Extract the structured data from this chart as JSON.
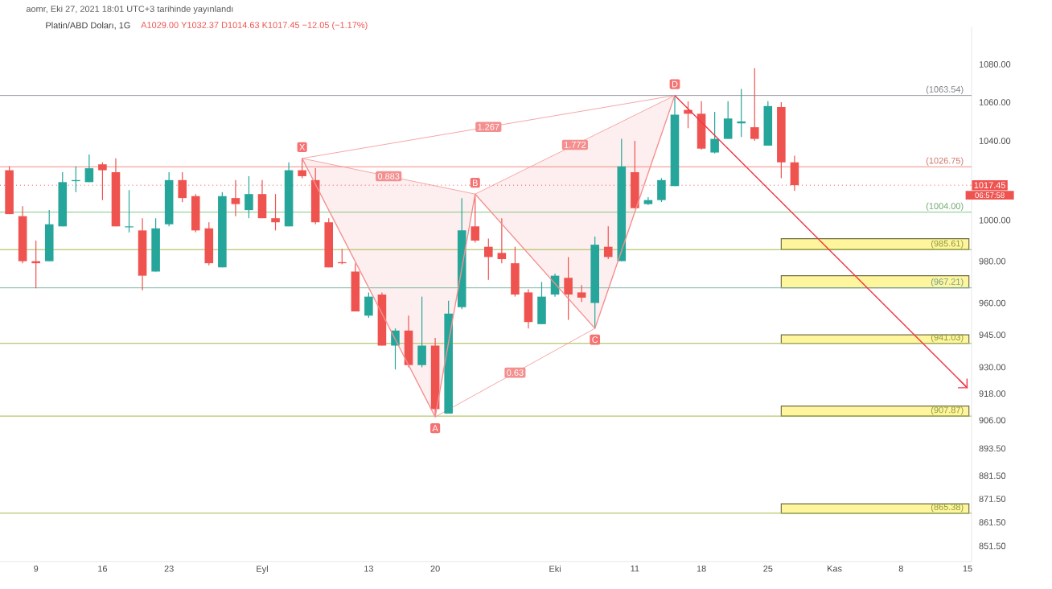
{
  "chart_data": {
    "type": "candlestick",
    "title": "Platin/ABD Doları, 1G",
    "subtitle": "A1029.00 Y1032.37 D1014.63 K1017.45 −12.05 (−1.17%)",
    "annotations": [
      "aomr, Eki 27, 2021 18:01 UTC+3 tarihinde yayınlandı",
      "0.883",
      "1.267",
      "1.772",
      "0.63",
      "06:57:58"
    ],
    "categories": [
      null,
      null,
      "9",
      null,
      null,
      null,
      null,
      "16",
      null,
      null,
      null,
      null,
      "23",
      null,
      null,
      null,
      null,
      null,
      null,
      "Eyl",
      null,
      null,
      null,
      null,
      null,
      null,
      null,
      "13",
      null,
      null,
      null,
      null,
      "20",
      null,
      null,
      null,
      null,
      null,
      null,
      null,
      null,
      "Eki",
      null,
      null,
      null,
      null,
      null,
      "11",
      null,
      null,
      null,
      null,
      "18",
      null,
      null,
      null,
      null,
      "25",
      null,
      null,
      null,
      null,
      "Kas",
      null,
      null,
      null,
      null,
      "8",
      null,
      null,
      null,
      null,
      "15"
    ],
    "ohlc": [
      [
        1025,
        1027,
        1003,
        1003
      ],
      [
        1002,
        1007,
        979,
        980
      ],
      [
        980,
        990,
        967,
        979
      ],
      [
        980,
        1005,
        980,
        998
      ],
      [
        997,
        1024,
        997,
        1019
      ],
      [
        1019.5,
        1027,
        1014,
        1020
      ],
      [
        1019,
        1033,
        1019,
        1026
      ],
      [
        1028,
        1029,
        1010,
        1025
      ],
      [
        1024,
        1031,
        997,
        997
      ],
      [
        996.5,
        1015,
        994,
        997
      ],
      [
        995,
        1001,
        966,
        973
      ],
      [
        975,
        1001,
        975,
        996
      ],
      [
        998,
        1024,
        997,
        1020
      ],
      [
        1020,
        1024,
        1009,
        1011
      ],
      [
        1012,
        1013,
        994,
        995
      ],
      [
        996,
        999,
        978,
        979
      ],
      [
        977,
        1014,
        977,
        1012
      ],
      [
        1011,
        1020,
        1002,
        1008
      ],
      [
        1005,
        1022,
        1001,
        1013
      ],
      [
        1013,
        1020,
        1001,
        1001
      ],
      [
        1001,
        1013,
        995,
        999
      ],
      [
        997,
        1029,
        997,
        1025
      ],
      [
        1025,
        1031,
        1021,
        1022
      ],
      [
        1020,
        1026,
        998,
        999
      ],
      [
        999,
        1001,
        977,
        977
      ],
      [
        979.5,
        986,
        978.5,
        979
      ],
      [
        975,
        979,
        956,
        956
      ],
      [
        954,
        965,
        953,
        963
      ],
      [
        964,
        965,
        940,
        940
      ],
      [
        940,
        948,
        929,
        947
      ],
      [
        947,
        954,
        930,
        931
      ],
      [
        931,
        963,
        930,
        940
      ],
      [
        940,
        943.5,
        907.5,
        911
      ],
      [
        909,
        961,
        909,
        955
      ],
      [
        958,
        1011,
        957,
        995
      ],
      [
        997,
        1013,
        989,
        990
      ],
      [
        987,
        991,
        971,
        982
      ],
      [
        984,
        1001,
        979,
        981
      ],
      [
        979,
        987,
        963,
        964
      ],
      [
        965,
        966.5,
        948,
        951
      ],
      [
        950,
        970,
        950,
        963
      ],
      [
        964,
        974,
        963,
        973
      ],
      [
        972,
        982,
        952,
        964
      ],
      [
        965,
        968.5,
        960.5,
        962.5
      ],
      [
        960,
        992,
        948,
        988
      ],
      [
        987,
        997,
        981,
        982
      ],
      [
        980,
        1041,
        980,
        1027
      ],
      [
        1024,
        1040,
        1006,
        1006
      ],
      [
        1008,
        1011.5,
        1007.5,
        1010
      ],
      [
        1010,
        1021,
        1009,
        1020
      ],
      [
        1017,
        1063.54,
        1017,
        1053.5
      ],
      [
        1056,
        1060.5,
        1046.5,
        1054
      ],
      [
        1054,
        1060.5,
        1035.5,
        1036
      ],
      [
        1034,
        1055,
        1033.5,
        1041
      ],
      [
        1041,
        1060.5,
        1041,
        1051.5
      ],
      [
        1049,
        1067,
        1042,
        1050
      ],
      [
        1047,
        1078,
        1040,
        1041
      ],
      [
        1037.5,
        1060.5,
        1037.5,
        1058
      ],
      [
        1057.5,
        1060,
        1021,
        1029
      ],
      [
        1029,
        1032.37,
        1014.63,
        1017.45
      ],
      null,
      null,
      null,
      null,
      null,
      null,
      null,
      null,
      null,
      null,
      null,
      null,
      null
    ],
    "colors": [
      "#ef5350",
      "#ef5350",
      "#ef5350",
      "#26a69a",
      "#26a69a",
      "#26a69a",
      "#26a69a",
      "#ef5350",
      "#ef5350",
      "#26a69a",
      "#ef5350",
      "#26a69a",
      "#26a69a",
      "#ef5350",
      "#ef5350",
      "#ef5350",
      "#26a69a",
      "#ef5350",
      "#26a69a",
      "#ef5350",
      "#ef5350",
      "#26a69a",
      "#ef5350",
      "#ef5350",
      "#ef5350",
      "#ef5350",
      "#ef5350",
      "#26a69a",
      "#ef5350",
      "#26a69a",
      "#ef5350",
      "#26a69a",
      "#ef5350",
      "#26a69a",
      "#26a69a",
      "#ef5350",
      "#ef5350",
      "#ef5350",
      "#ef5350",
      "#ef5350",
      "#26a69a",
      "#26a69a",
      "#ef5350",
      "#ef5350",
      "#26a69a",
      "#ef5350",
      "#26a69a",
      "#ef5350",
      "#26a69a",
      "#26a69a",
      "#26a69a",
      "#ef5350",
      "#ef5350",
      "#26a69a",
      "#26a69a",
      "#26a69a",
      "#ef5350",
      "#26a69a",
      "#ef5350",
      "#ef5350",
      null,
      null,
      null,
      null,
      null,
      null,
      null,
      null,
      null,
      null,
      null,
      null,
      null
    ],
    "series": [
      {
        "type": "line",
        "color": "#f48f8f",
        "values": [
          null,
          null,
          null,
          null,
          null,
          null,
          null,
          null,
          null,
          null,
          null,
          null,
          null,
          null,
          null,
          null,
          null,
          null,
          null,
          null,
          null,
          null,
          1031,
          null,
          null,
          null,
          null,
          null,
          null,
          null,
          null,
          null,
          907.5,
          null,
          null,
          1013,
          null,
          null,
          null,
          null,
          null,
          null,
          null,
          null,
          948,
          null,
          null,
          null,
          null,
          null,
          1063.54,
          null,
          null,
          null,
          null,
          null,
          null,
          null,
          null,
          null,
          null,
          null,
          null,
          null,
          null,
          null,
          null,
          null,
          null,
          null,
          null,
          null,
          null
        ],
        "value_labels": [
          null,
          null,
          null,
          null,
          null,
          null,
          null,
          null,
          null,
          null,
          null,
          null,
          null,
          null,
          null,
          null,
          null,
          null,
          null,
          null,
          null,
          null,
          "X",
          null,
          null,
          null,
          null,
          null,
          null,
          null,
          null,
          null,
          "A",
          null,
          null,
          "B",
          null,
          null,
          null,
          null,
          null,
          null,
          null,
          null,
          "C",
          null,
          null,
          null,
          null,
          null,
          "D",
          null,
          null,
          null,
          null,
          null,
          null,
          null,
          null,
          null,
          null,
          null,
          null,
          null,
          null,
          null,
          null,
          null,
          null,
          null,
          null,
          null,
          null
        ]
      },
      {
        "type": "line",
        "color": "#f23645",
        "values": [
          null,
          null,
          null,
          null,
          null,
          null,
          null,
          null,
          null,
          null,
          null,
          null,
          null,
          null,
          null,
          null,
          null,
          null,
          null,
          null,
          null,
          null,
          null,
          null,
          null,
          null,
          null,
          null,
          null,
          null,
          null,
          null,
          null,
          null,
          null,
          null,
          null,
          null,
          null,
          null,
          null,
          null,
          null,
          null,
          null,
          null,
          null,
          null,
          null,
          null,
          1063.54,
          null,
          null,
          null,
          null,
          null,
          null,
          null,
          null,
          null,
          null,
          null,
          null,
          null,
          null,
          null,
          null,
          null,
          null,
          null,
          null,
          null,
          920.5
        ]
      }
    ],
    "ylim": [
      845,
      1100
    ],
    "yticks": [
      {
        "value": 1080,
        "label": "1080.00"
      },
      {
        "value": 1060,
        "label": "1060.00"
      },
      {
        "value": 1040,
        "label": "1040.00"
      },
      {
        "value": 1000,
        "label": "1000.00"
      },
      {
        "value": 980,
        "label": "980.00"
      },
      {
        "value": 960,
        "label": "960.00"
      },
      {
        "value": 945,
        "label": "945.00"
      },
      {
        "value": 930,
        "label": "930.00"
      },
      {
        "value": 918,
        "label": "918.00"
      },
      {
        "value": 906,
        "label": "906.00"
      },
      {
        "value": 893.5,
        "label": "893.50"
      },
      {
        "value": 881.5,
        "label": "881.50"
      },
      {
        "value": 871.5,
        "label": "871.50"
      },
      {
        "value": 861.5,
        "label": "861.50"
      },
      {
        "value": 851.5,
        "label": "851.50"
      }
    ],
    "log": "y",
    "ref_lines": [
      {
        "axis": "y",
        "value": 1063.54,
        "label": "(1063.54)",
        "color": "#9598a1"
      },
      {
        "axis": "y",
        "value": 1026.75,
        "label": "(1026.75)",
        "color": "#f28b82"
      },
      {
        "axis": "y",
        "value": 1004,
        "label": "(1004.00)",
        "color": "#81c784"
      },
      {
        "axis": "y",
        "value": 985.61,
        "label": "(985.61)",
        "color": "#a5b84a"
      },
      {
        "axis": "y",
        "value": 967.21,
        "label": "(967.21)",
        "color": "#80b8a8"
      },
      {
        "axis": "y",
        "value": 941.03,
        "label": "(941.03)",
        "color": "#a5b84a"
      },
      {
        "axis": "y",
        "value": 907.87,
        "label": "(907.87)",
        "color": "#a5b84a"
      },
      {
        "axis": "y",
        "value": 865.38,
        "label": "(865.38)",
        "color": "#a5b84a"
      },
      {
        "axis": "y",
        "value": 1017.45,
        "label": "1017.45",
        "color": "#ef5350",
        "line_style": "dotted"
      }
    ],
    "bands": [
      {
        "axis": "y",
        "from": 985.61,
        "to": 991,
        "color": "#fff59d"
      },
      {
        "axis": "y",
        "from": 967.21,
        "to": 973,
        "color": "#fff59d"
      },
      {
        "axis": "y",
        "from": 941.03,
        "to": 945,
        "color": "#fff59d"
      },
      {
        "axis": "y",
        "from": 907.87,
        "to": 912.4,
        "color": "#fff59d"
      },
      {
        "axis": "y",
        "from": 865.38,
        "to": 869.4,
        "color": "#fff59d"
      }
    ]
  }
}
